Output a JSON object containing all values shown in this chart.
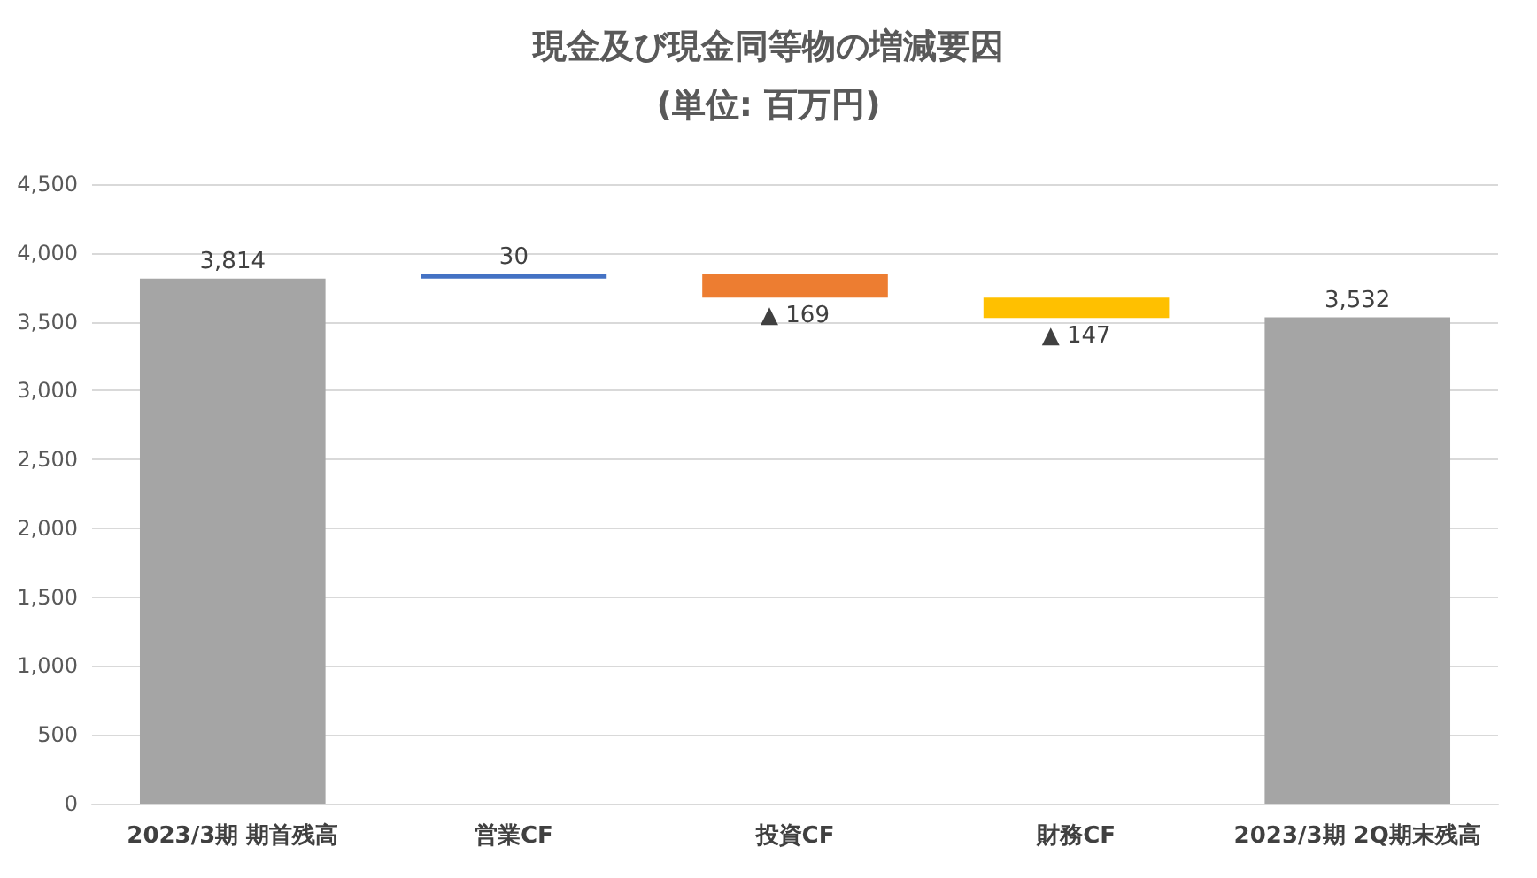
{
  "chart_data": {
    "type": "bar",
    "title": "現金及び現金同等物の増減要因",
    "subtitle": "(単位: 百万円)",
    "categories": [
      "2023/3期 期首残高",
      "営業CF",
      "投資CF",
      "財務CF",
      "2023/3期 2Q期末残高"
    ],
    "values": [
      3814,
      30,
      -169,
      -147,
      3532
    ],
    "base": [
      0,
      3814,
      3844,
      3675,
      0
    ],
    "colors": [
      "#a5a5a5",
      "#4472c4",
      "#ed7d31",
      "#ffc000",
      "#a5a5a5"
    ],
    "value_labels": [
      "3,814",
      "30",
      "▲ 169",
      "▲ 147",
      "3,532"
    ],
    "ylim": [
      0,
      4500
    ],
    "yticks": [
      0,
      500,
      {
        "value": 1000,
        "label": "1,000"
      },
      {
        "value": 1500,
        "label": "1,500"
      },
      {
        "value": 2000,
        "label": "2,000"
      },
      {
        "value": 2500,
        "label": "2,500"
      },
      {
        "value": 3000,
        "label": "3,000"
      },
      {
        "value": 3500,
        "label": "3,500"
      },
      {
        "value": 4000,
        "label": "4,000"
      },
      {
        "value": 4500,
        "label": "4,500"
      }
    ],
    "grid": "y"
  }
}
